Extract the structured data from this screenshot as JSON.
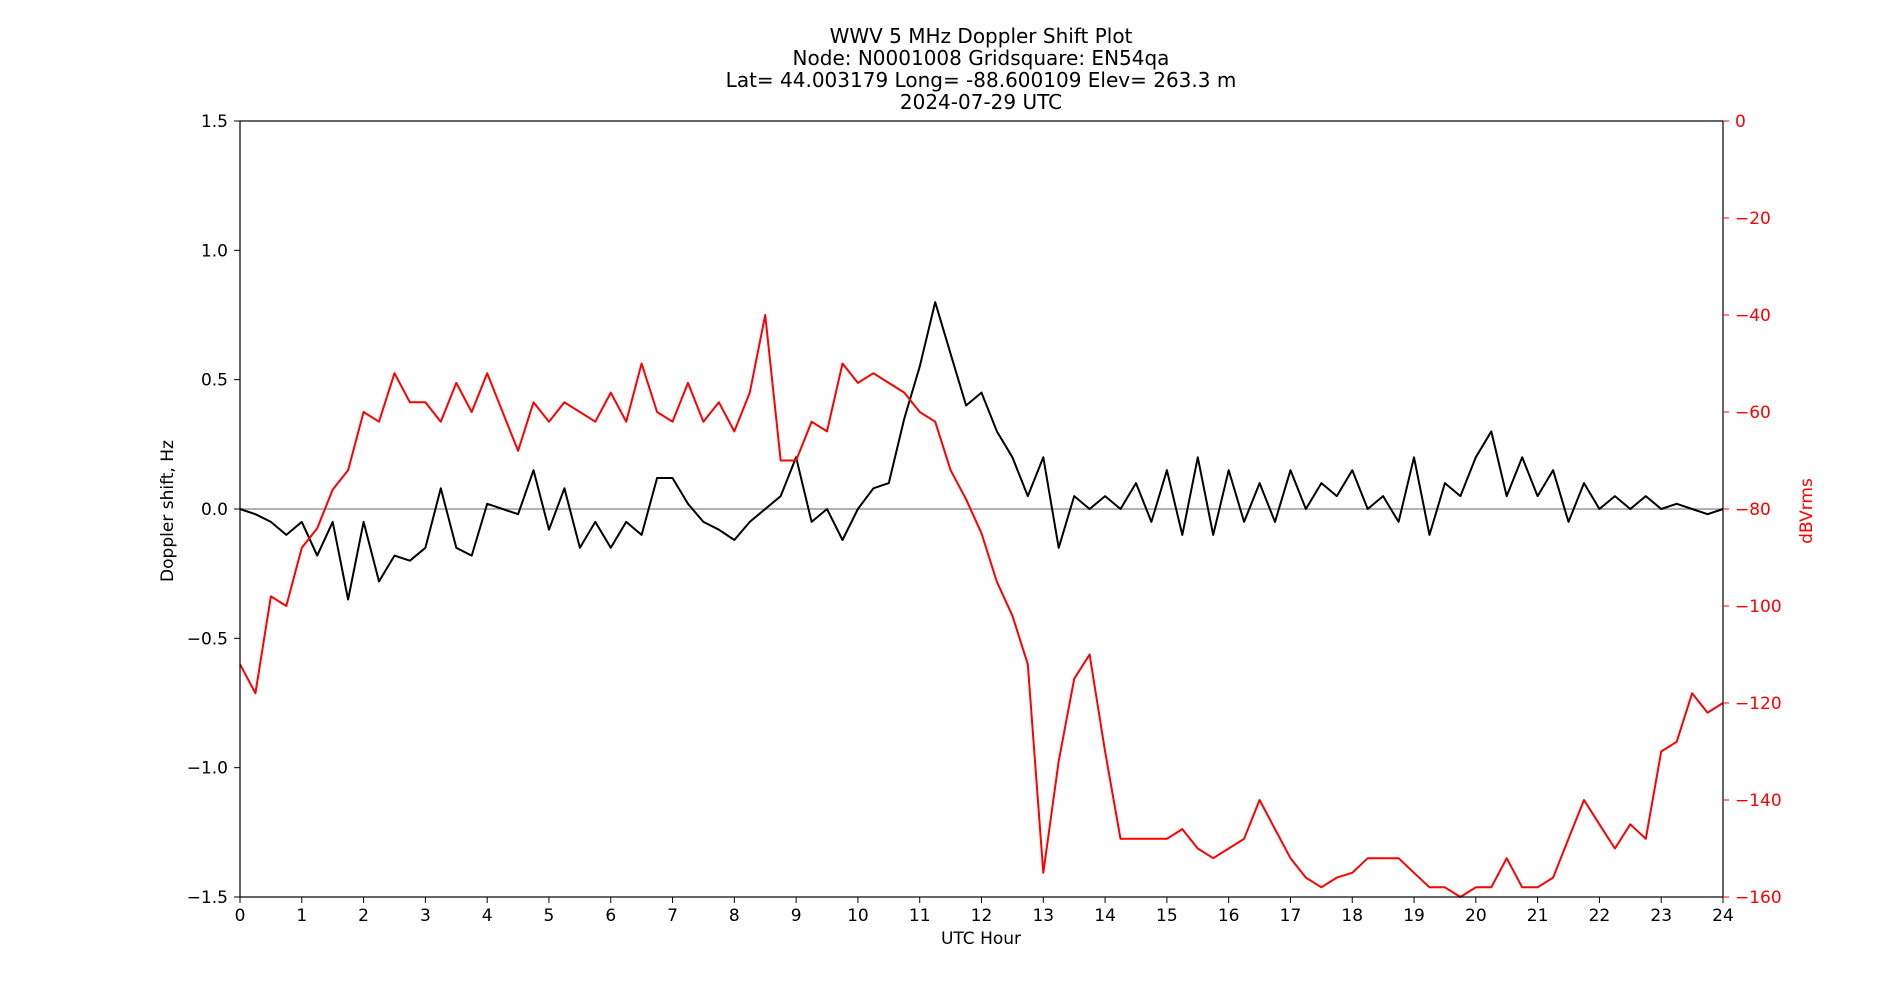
{
  "chart_data": {
    "type": "line",
    "title_lines": [
      "WWV 5 MHz Doppler Shift Plot",
      "Node:  N0001008     Gridsquare:  EN54qa",
      "Lat= 44.003179    Long= -88.600109    Elev= 263.3 m",
      "2024-07-29  UTC"
    ],
    "xlabel": "UTC Hour",
    "ylabel_left": "Doppler shift, Hz",
    "ylabel_right": "dBVrms",
    "xlim": [
      0,
      24
    ],
    "ylim_left": [
      -1.5,
      1.5
    ],
    "ylim_right": [
      -160,
      0
    ],
    "x_ticks": [
      0,
      1,
      2,
      3,
      4,
      5,
      6,
      7,
      8,
      9,
      10,
      11,
      12,
      13,
      14,
      15,
      16,
      17,
      18,
      19,
      20,
      21,
      22,
      23,
      24
    ],
    "x_tick_labels": [
      "0",
      "1",
      "2",
      "3",
      "4",
      "5",
      "6",
      "7",
      "8",
      "9",
      "10",
      "11",
      "12",
      "13",
      "14",
      "15",
      "16",
      "17",
      "18",
      "19",
      "20",
      "21",
      "22",
      "23",
      "24"
    ],
    "y_left_ticks": [
      1.5,
      1.0,
      0.5,
      0.0,
      -0.5,
      -1.0,
      -1.5
    ],
    "y_left_tick_labels": [
      "1.5",
      "1.0",
      "0.5",
      "0.0",
      "−0.5",
      "−1.0",
      "−1.5"
    ],
    "y_right_ticks": [
      0,
      -20,
      -40,
      -60,
      -80,
      -100,
      -120,
      -140,
      -160
    ],
    "y_right_tick_labels": [
      "0",
      "−20",
      "−40",
      "−60",
      "−80",
      "−100",
      "−120",
      "−140",
      "−160"
    ],
    "reference_line_y": 0.0,
    "colors": {
      "doppler": "#000000",
      "power": "#ff0000",
      "reference": "#999999",
      "axis": "#000000",
      "right_axis": "#ff0000"
    },
    "series": [
      {
        "axis": "left",
        "x": [
          0,
          0.25,
          0.5,
          0.75,
          1.0,
          1.25,
          1.5,
          1.75,
          2.0,
          2.25,
          2.5,
          2.75,
          3.0,
          3.25,
          3.5,
          3.75,
          4.0,
          4.25,
          4.5,
          4.75,
          5.0,
          5.25,
          5.5,
          5.75,
          6.0,
          6.25,
          6.5,
          6.75,
          7.0,
          7.25,
          7.5,
          7.75,
          8.0,
          8.25,
          8.5,
          8.75,
          9.0,
          9.25,
          9.5,
          9.75,
          10.0,
          10.25,
          10.5,
          10.75,
          11.0,
          11.25,
          11.5,
          11.75,
          12.0,
          12.25,
          12.5,
          12.75,
          13.0,
          13.25,
          13.5,
          13.75,
          14.0,
          14.25,
          14.5,
          14.75,
          15.0,
          15.25,
          15.5,
          15.75,
          16.0,
          16.25,
          16.5,
          16.75,
          17.0,
          17.25,
          17.5,
          17.75,
          18.0,
          18.25,
          18.5,
          18.75,
          19.0,
          19.25,
          19.5,
          19.75,
          20.0,
          20.25,
          20.5,
          20.75,
          21.0,
          21.25,
          21.5,
          21.75,
          22.0,
          22.25,
          22.5,
          22.75,
          23.0,
          23.25,
          23.5,
          23.75,
          24.0
        ],
        "y": [
          0.0,
          -0.02,
          -0.05,
          -0.1,
          -0.05,
          -0.18,
          -0.05,
          -0.35,
          -0.05,
          -0.28,
          -0.18,
          -0.2,
          -0.15,
          0.08,
          -0.15,
          -0.18,
          0.02,
          0.0,
          -0.02,
          0.15,
          -0.08,
          0.08,
          -0.15,
          -0.05,
          -0.15,
          -0.05,
          -0.1,
          0.12,
          0.12,
          0.02,
          -0.05,
          -0.08,
          -0.12,
          -0.05,
          0.0,
          0.05,
          0.2,
          -0.05,
          0.0,
          -0.12,
          0.0,
          0.08,
          0.1,
          0.35,
          0.55,
          0.8,
          0.6,
          0.4,
          0.45,
          0.3,
          0.2,
          0.05,
          0.2,
          -0.15,
          0.05,
          0.0,
          0.05,
          0.0,
          0.1,
          -0.05,
          0.15,
          -0.1,
          0.2,
          -0.1,
          0.15,
          -0.05,
          0.1,
          -0.05,
          0.15,
          0.0,
          0.1,
          0.05,
          0.15,
          0.0,
          0.05,
          -0.05,
          0.2,
          -0.1,
          0.1,
          0.05,
          0.2,
          0.3,
          0.05,
          0.2,
          0.05,
          0.15,
          -0.05,
          0.1,
          0.0,
          0.05,
          0.0,
          0.05,
          0.0,
          0.02,
          0.0,
          -0.02,
          0.0
        ]
      },
      {
        "axis": "right",
        "x": [
          0,
          0.25,
          0.5,
          0.75,
          1.0,
          1.25,
          1.5,
          1.75,
          2.0,
          2.25,
          2.5,
          2.75,
          3.0,
          3.25,
          3.5,
          3.75,
          4.0,
          4.25,
          4.5,
          4.75,
          5.0,
          5.25,
          5.5,
          5.75,
          6.0,
          6.25,
          6.5,
          6.75,
          7.0,
          7.25,
          7.5,
          7.75,
          8.0,
          8.25,
          8.5,
          8.75,
          9.0,
          9.25,
          9.5,
          9.75,
          10.0,
          10.25,
          10.5,
          10.75,
          11.0,
          11.25,
          11.5,
          11.75,
          12.0,
          12.25,
          12.5,
          12.75,
          13.0,
          13.25,
          13.5,
          13.75,
          14.0,
          14.25,
          14.5,
          14.75,
          15.0,
          15.25,
          15.5,
          15.75,
          16.0,
          16.25,
          16.5,
          16.75,
          17.0,
          17.25,
          17.5,
          17.75,
          18.0,
          18.25,
          18.5,
          18.75,
          19.0,
          19.25,
          19.5,
          19.75,
          20.0,
          20.25,
          20.5,
          20.75,
          21.0,
          21.25,
          21.5,
          21.75,
          22.0,
          22.25,
          22.5,
          22.75,
          23.0,
          23.25,
          23.5,
          23.75,
          24.0
        ],
        "y": [
          -112,
          -118,
          -98,
          -100,
          -88,
          -84,
          -76,
          -72,
          -60,
          -62,
          -52,
          -58,
          -58,
          -62,
          -54,
          -60,
          -52,
          -60,
          -68,
          -58,
          -62,
          -58,
          -60,
          -62,
          -56,
          -62,
          -50,
          -60,
          -62,
          -54,
          -62,
          -58,
          -64,
          -56,
          -40,
          -70,
          -70,
          -62,
          -64,
          -50,
          -54,
          -52,
          -54,
          -56,
          -60,
          -62,
          -72,
          -78,
          -85,
          -95,
          -102,
          -112,
          -155,
          -132,
          -115,
          -110,
          -130,
          -148,
          -148,
          -148,
          -148,
          -146,
          -150,
          -152,
          -150,
          -148,
          -140,
          -146,
          -152,
          -156,
          -158,
          -156,
          -155,
          -152,
          -152,
          -152,
          -155,
          -158,
          -158,
          -160,
          -158,
          -158,
          -152,
          -158,
          -158,
          -156,
          -148,
          -140,
          -145,
          -150,
          -145,
          -148,
          -130,
          -128,
          -118,
          -122,
          -120
        ]
      }
    ]
  }
}
